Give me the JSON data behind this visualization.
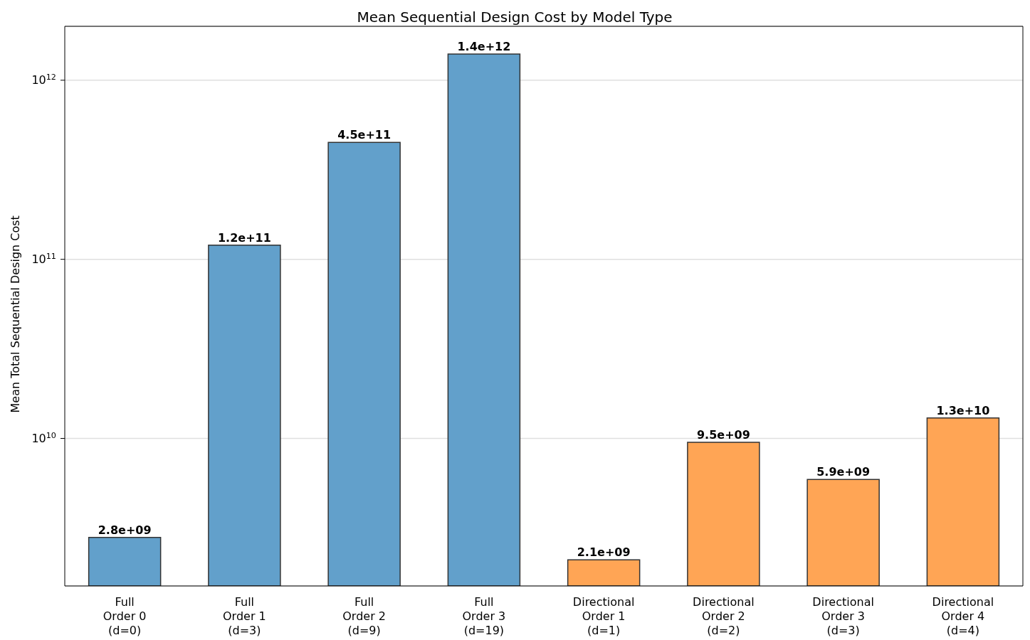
{
  "chart_data": {
    "type": "bar",
    "title": "Mean Sequential Design Cost by Model Type",
    "ylabel": "Mean Total Sequential Design Cost",
    "categories": [
      "Full\nOrder 0\n(d=0)",
      "Full\nOrder 1\n(d=3)",
      "Full\nOrder 2\n(d=9)",
      "Full\nOrder 3\n(d=19)",
      "Directional\nOrder 1\n(d=1)",
      "Directional\nOrder 2\n(d=2)",
      "Directional\nOrder 3\n(d=3)",
      "Directional\nOrder 4\n(d=4)"
    ],
    "values": [
      2800000000.0,
      120000000000.0,
      450000000000.0,
      1400000000000.0,
      2100000000.0,
      9500000000.0,
      5900000000.0,
      13000000000.0
    ],
    "colors": [
      "#62a0cb",
      "#62a0cb",
      "#62a0cb",
      "#62a0cb",
      "#ffa555",
      "#ffa555",
      "#ffa555",
      "#ffa555"
    ],
    "log": "y",
    "ylim": [
      1500000000.0,
      2000000000000.0
    ],
    "yticks": [
      {
        "value": 10000000000.0,
        "label": "10$^{10}$"
      },
      {
        "value": 100000000000.0,
        "label": "10$^{11}$"
      },
      {
        "value": 1000000000000.0,
        "label": "10$^{12}$"
      }
    ],
    "value_labels": [
      "2.8e+09",
      "1.2e+11",
      "4.5e+11",
      "1.4e+12",
      "2.1e+09",
      "9.5e+09",
      "5.9e+09",
      "1.3e+10"
    ],
    "grid": "y"
  }
}
